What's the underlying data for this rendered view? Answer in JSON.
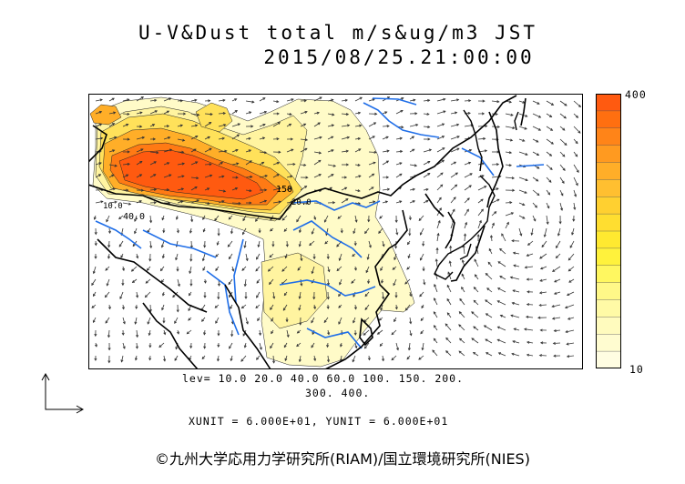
{
  "title": {
    "line1": "U-V&Dust total m/s&ug/m3 JST",
    "line2": "2015/08/25.21:00:00"
  },
  "legend": {
    "lev_line1": "lev= 10.0 20.0 40.0 60.0 100. 150. 200.",
    "lev_line2": "300. 400.",
    "units": "XUNIT = 6.000E+01, YUNIT = 6.000E+01",
    "colorbar_top": "400",
    "colorbar_bottom": "10",
    "colorbar_colors": [
      "#ff5a10",
      "#ff6f10",
      "#ff8418",
      "#ff9a20",
      "#ffae28",
      "#ffbf30",
      "#ffd030",
      "#ffde30",
      "#ffe930",
      "#fff23c",
      "#fff760",
      "#fff888",
      "#fffaa6",
      "#fffbbe",
      "#fffcd0",
      "#fffde2"
    ],
    "contour_labels": [
      "40.0",
      "150",
      "10.0",
      "20.0"
    ]
  },
  "map": {
    "dust_color_high": "#ff5a10",
    "dust_color_low": "#fffbc8",
    "river_color": "#1f6ee8",
    "coast_color": "#000000"
  },
  "copyright": "©九州大学応用力学研究所(RIAM)/国立環境研究所(NIES)"
}
